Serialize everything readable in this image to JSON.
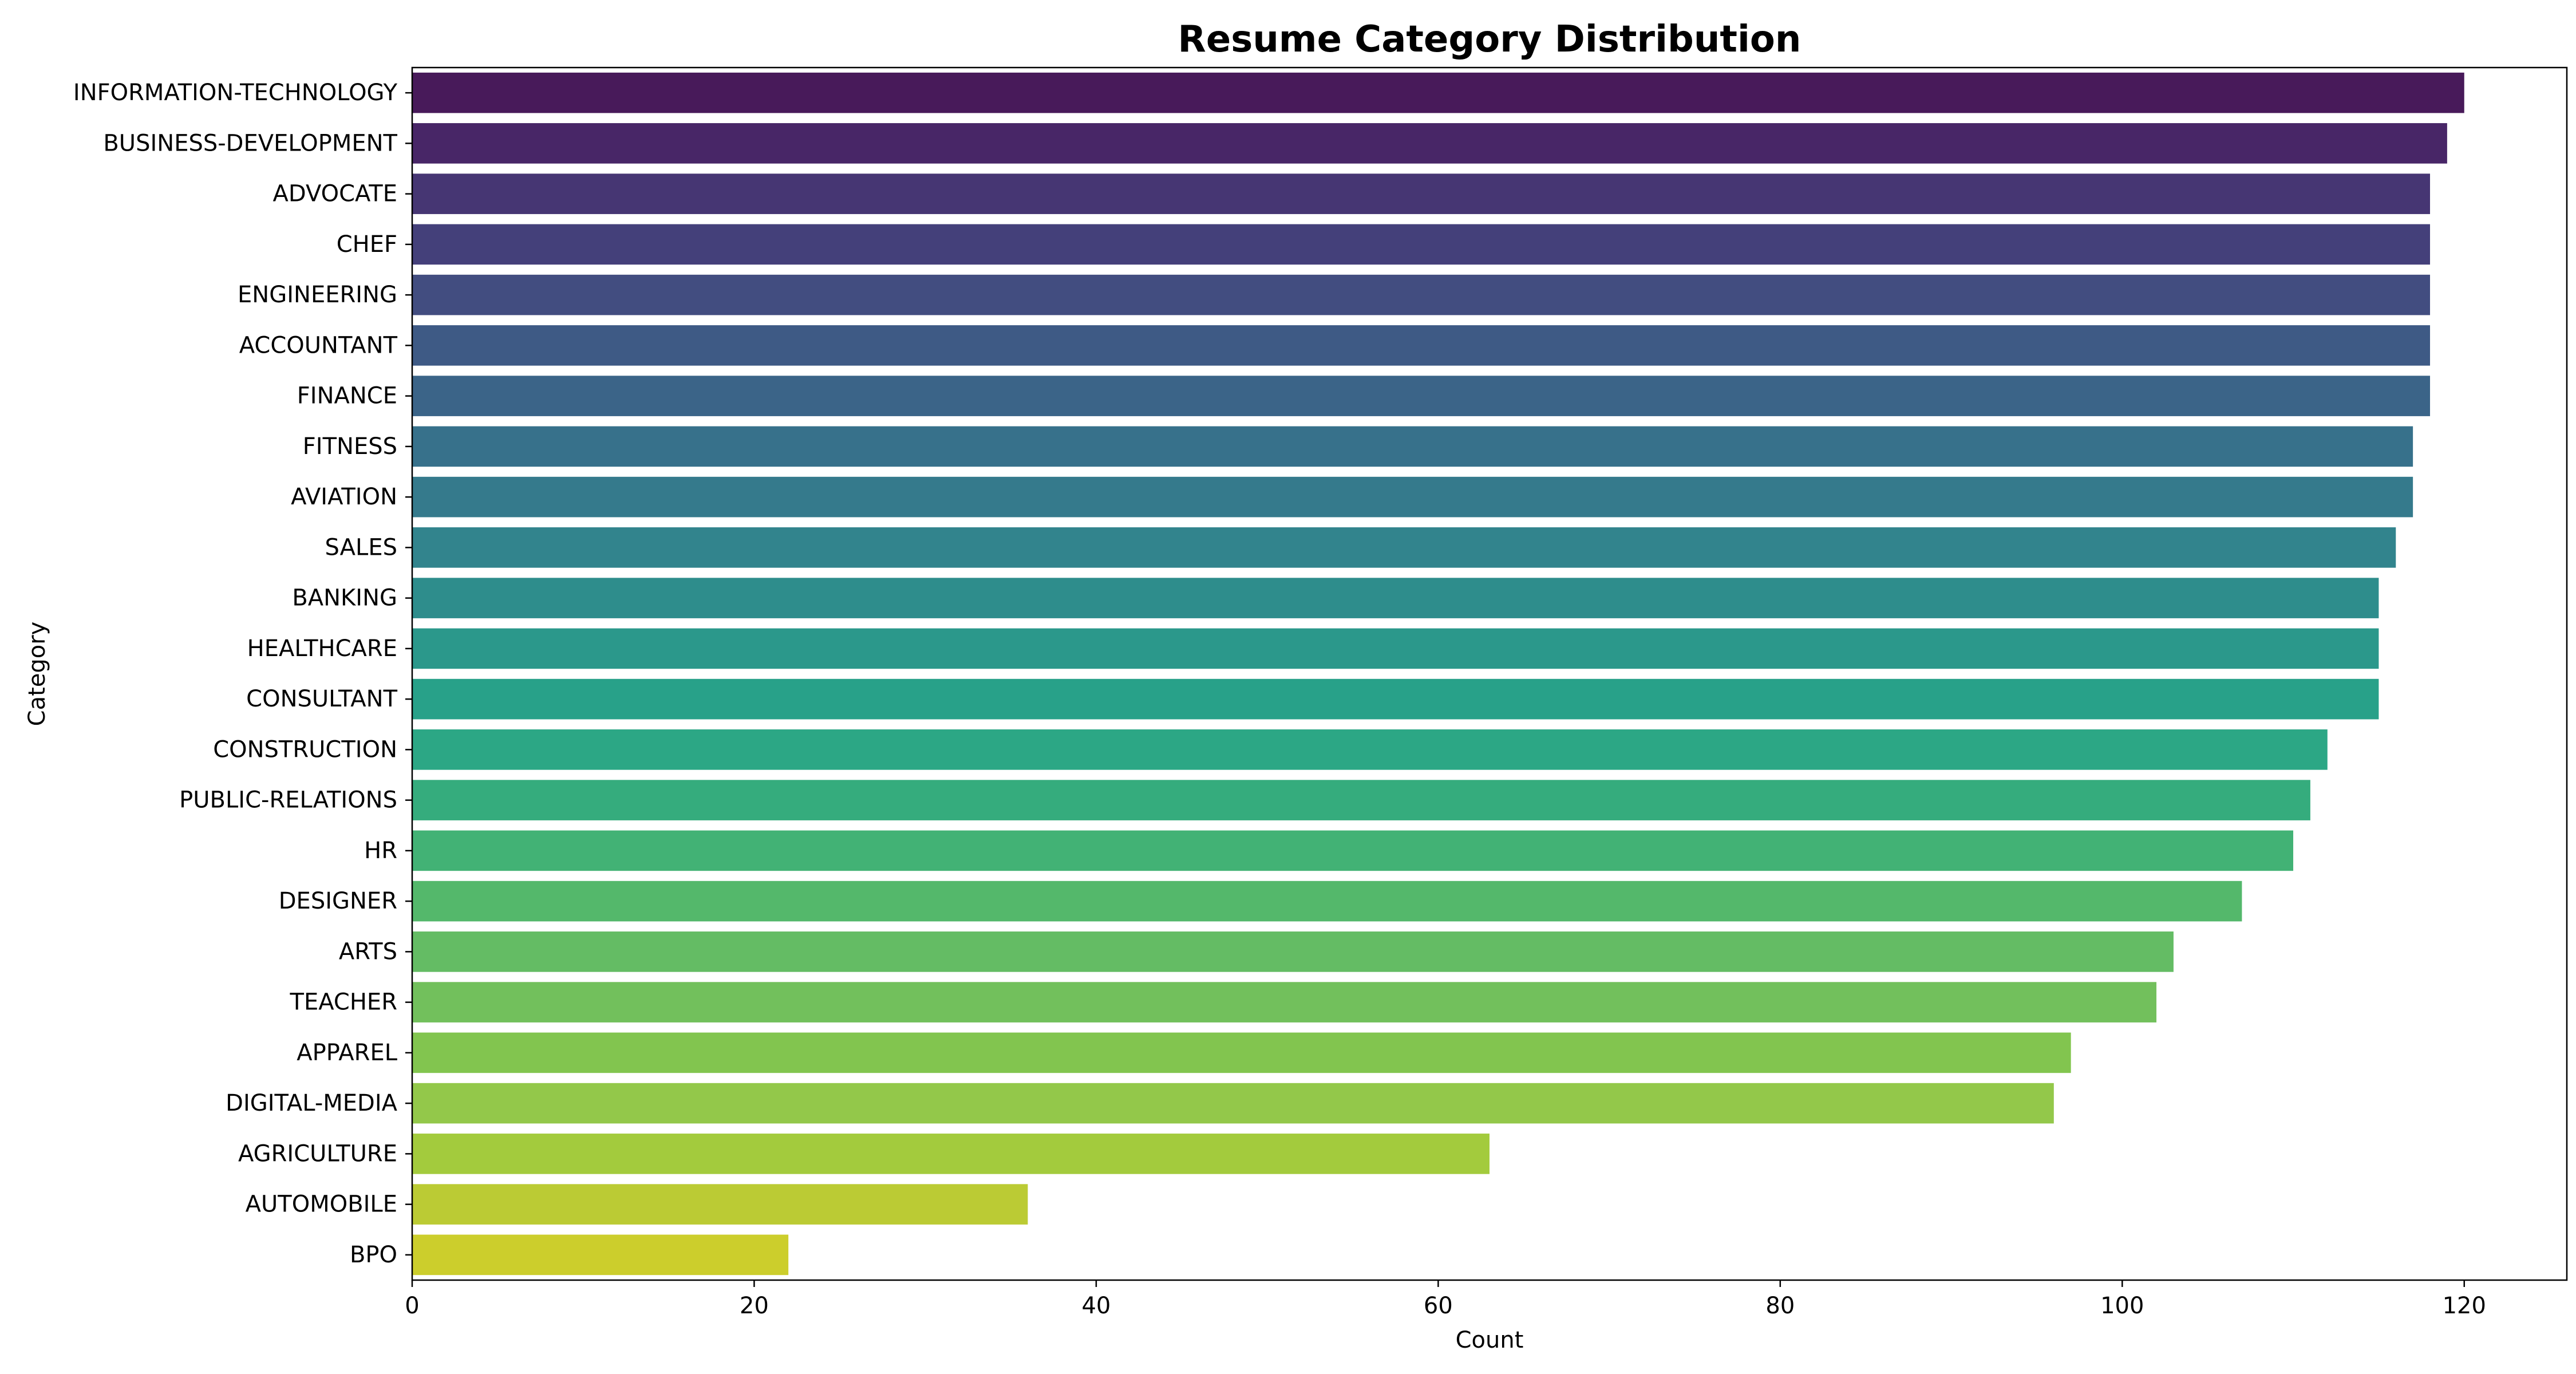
{
  "chart_data": {
    "type": "bar",
    "orientation": "horizontal",
    "title": "Resume Category Distribution",
    "xlabel": "Count",
    "ylabel": "Category",
    "xlim": [
      0,
      126
    ],
    "xticks": [
      0,
      20,
      40,
      60,
      80,
      100,
      120
    ],
    "grid": false,
    "legend": "none",
    "colormap": "viridis",
    "categories": [
      "INFORMATION-TECHNOLOGY",
      "BUSINESS-DEVELOPMENT",
      "ADVOCATE",
      "CHEF",
      "ENGINEERING",
      "ACCOUNTANT",
      "FINANCE",
      "FITNESS",
      "AVIATION",
      "SALES",
      "BANKING",
      "HEALTHCARE",
      "CONSULTANT",
      "CONSTRUCTION",
      "PUBLIC-RELATIONS",
      "HR",
      "DESIGNER",
      "ARTS",
      "TEACHER",
      "APPAREL",
      "DIGITAL-MEDIA",
      "AGRICULTURE",
      "AUTOMOBILE",
      "BPO"
    ],
    "values": [
      120,
      119,
      118,
      118,
      118,
      118,
      118,
      117,
      117,
      116,
      115,
      115,
      115,
      112,
      111,
      110,
      107,
      103,
      102,
      97,
      96,
      63,
      36,
      22
    ],
    "colors": [
      "#481a5a",
      "#482667",
      "#463673",
      "#44407a",
      "#424d80",
      "#3e5a85",
      "#3b6488",
      "#37718b",
      "#357a8c",
      "#32848d",
      "#2e8d8c",
      "#2b988b",
      "#28a189",
      "#2ca785",
      "#35ac7d",
      "#42b275",
      "#54b86b",
      "#64bc64",
      "#72c05c",
      "#82c54f",
      "#93c84a",
      "#a3cb3d",
      "#bbcb34",
      "#ccce2c"
    ]
  }
}
